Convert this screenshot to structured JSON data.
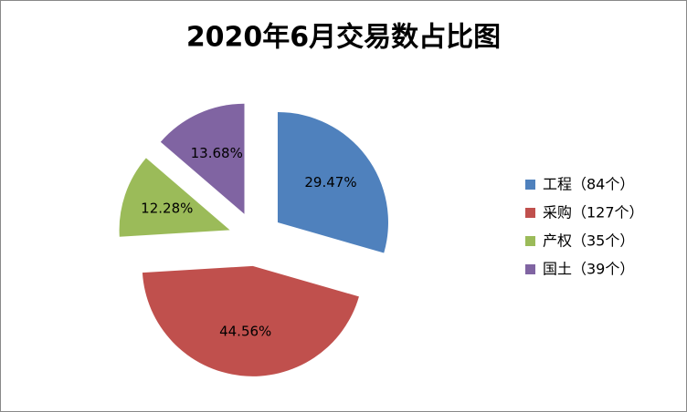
{
  "chart_data": {
    "type": "pie",
    "title": "2020年6月交易数占比图",
    "categories": [
      "工程（84个）",
      "采购（127个）",
      "产权（35个）",
      "国土（39个）"
    ],
    "values": [
      29.47,
      44.56,
      12.28,
      13.68
    ],
    "value_labels": [
      "29.47%",
      "44.56%",
      "12.28%",
      "13.68%"
    ],
    "colors": [
      "#4f81bd",
      "#c0504d",
      "#9bbb59",
      "#8064a2"
    ]
  }
}
